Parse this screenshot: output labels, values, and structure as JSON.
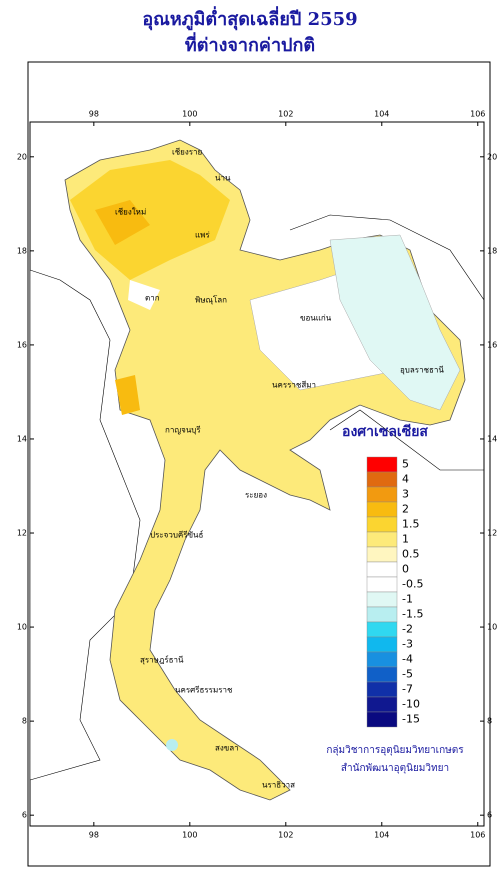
{
  "title": [
    "อุณหภูมิต่ำสุดเฉลี่ยปี  2559",
    "ที่ต่างจากค่าปกติ"
  ],
  "map": {
    "xlim": [
      96.67,
      106.13
    ],
    "ylim": [
      5.77,
      20.74
    ],
    "xticks": [
      98,
      100,
      102,
      104,
      106
    ],
    "yticks": [
      6,
      8,
      10,
      12,
      14,
      16,
      18,
      20
    ]
  },
  "legend": {
    "title": "องศาเซลเซียส",
    "items": [
      {
        "label": "5",
        "color": "#ff0000"
      },
      {
        "label": "4",
        "color": "#e06a10"
      },
      {
        "label": "3",
        "color": "#f29a10"
      },
      {
        "label": "2",
        "color": "#f8bb10"
      },
      {
        "label": "1.5",
        "color": "#fbd530"
      },
      {
        "label": "1",
        "color": "#fdea7a"
      },
      {
        "label": "0.5",
        "color": "#fff6c0"
      },
      {
        "label": "0",
        "color": "#ffffff"
      },
      {
        "label": "-0.5",
        "color": "#ffffff"
      },
      {
        "label": "-1",
        "color": "#e0f8f4"
      },
      {
        "label": "-1.5",
        "color": "#b8eef0"
      },
      {
        "label": "-2",
        "color": "#30d8f0"
      },
      {
        "label": "-3",
        "color": "#10b8ee"
      },
      {
        "label": "-4",
        "color": "#1890e0"
      },
      {
        "label": "-5",
        "color": "#1060c8"
      },
      {
        "label": "-7",
        "color": "#1030a8"
      },
      {
        "label": "-10",
        "color": "#101890"
      },
      {
        "label": "-15",
        "color": "#0a0a80"
      }
    ]
  },
  "places": [
    "เชียงราย",
    "เชียงใหม่",
    "น่าน",
    "แพร่",
    "ตาก",
    "พิษณุโลก",
    "ขอนแก่น",
    "อุบลราชธานี",
    "นครราชสีมา",
    "กาญจนบุรี",
    "ระยอง",
    "ประจวบคีรีขันธ์",
    "สุราษฎร์ธานี",
    "นครศรีธรรมราช",
    "สงขลา",
    "นราธิวาส"
  ],
  "credit": [
    "กลุ่มวิชาการอุตุนิยมวิทยาเกษตร",
    "สำนักพัฒนาอุตุนิยมวิทยา"
  ]
}
